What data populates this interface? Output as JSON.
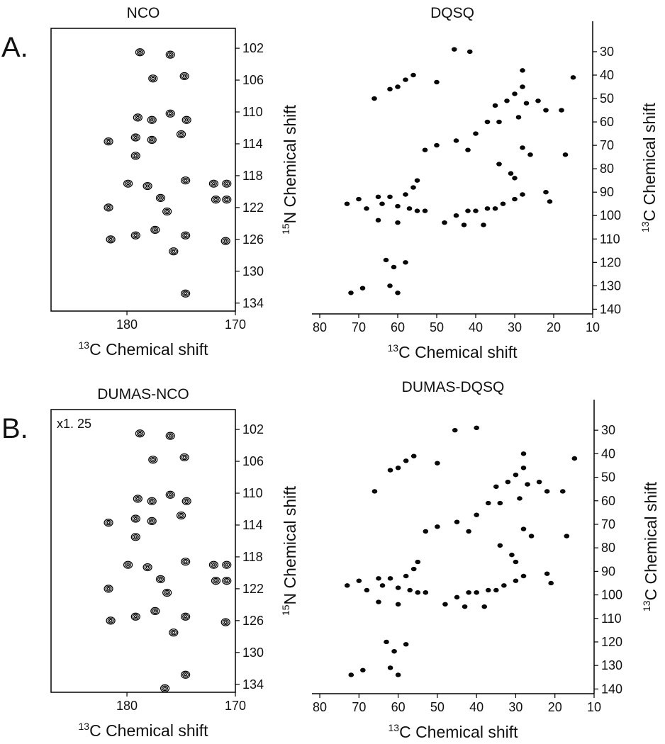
{
  "chart_data": [
    {
      "type": "contour",
      "title": "NCO",
      "panel_label": "A.",
      "xlabel_isotope": "13",
      "xlabel": "C Chemical shift",
      "ylabel_isotope": "15",
      "ylabel": "N Chemical shift",
      "xlim": [
        170,
        187
      ],
      "xaxis_inverted": true,
      "xticks": [
        180,
        170
      ],
      "ylim": [
        99.5,
        135
      ],
      "yaxis_inverted": true,
      "yticks": [
        102,
        106,
        110,
        114,
        118,
        122,
        126,
        130,
        134
      ],
      "color": "#000000",
      "frame": "box",
      "x": [
        178.8,
        176.0,
        177.6,
        174.7,
        179.0,
        177.7,
        176.0,
        174.5,
        181.7,
        179.2,
        177.7,
        175.0,
        179.2,
        178.1,
        174.6,
        179.9,
        176.9,
        176.3,
        172.0,
        170.8,
        171.8,
        170.8,
        181.7,
        181.5,
        179.2,
        177.4,
        175.7,
        174.6,
        170.9,
        174.6
      ],
      "values": [
        102.5,
        102.8,
        105.8,
        105.5,
        110.7,
        111.0,
        110.2,
        111.0,
        113.7,
        113.2,
        113.5,
        112.8,
        115.5,
        119.3,
        118.6,
        119.0,
        120.8,
        122.5,
        119.0,
        119.0,
        121.0,
        121.0,
        122.0,
        126.0,
        125.5,
        124.8,
        127.5,
        125.5,
        126.2,
        132.8
      ]
    },
    {
      "type": "contour",
      "title": "DQSQ",
      "xlabel_isotope": "13",
      "xlabel": "C Chemical shift",
      "ylabel_isotope": "13",
      "ylabel": "C Chemical shift",
      "xlim": [
        10,
        82
      ],
      "xaxis_inverted": true,
      "xticks": [
        80,
        70,
        60,
        50,
        40,
        30,
        20,
        10
      ],
      "ylim": [
        17,
        142
      ],
      "yaxis_inverted": true,
      "yticks": [
        30,
        40,
        50,
        60,
        70,
        80,
        90,
        100,
        110,
        120,
        130,
        140
      ],
      "color": "#000000",
      "frame": "open",
      "x": [
        45.5,
        41.5,
        56,
        58,
        60,
        62,
        66,
        28,
        30,
        32,
        35,
        27,
        24,
        22,
        15,
        18,
        29,
        37,
        34,
        40,
        45,
        50,
        53,
        42,
        28,
        26,
        17,
        34,
        31,
        30,
        55,
        56,
        58,
        62,
        65,
        70,
        73,
        68,
        64,
        60,
        57,
        55,
        53,
        65,
        45,
        42,
        40,
        37,
        35,
        33,
        30,
        28,
        22,
        21,
        60,
        48,
        43,
        38,
        63,
        61,
        58,
        72,
        69,
        62,
        60,
        50,
        28
      ],
      "values": [
        29,
        30,
        40,
        42,
        45,
        46,
        50,
        38,
        48,
        51,
        53,
        52,
        51,
        55,
        41,
        55,
        58,
        60,
        60,
        65,
        68,
        70,
        72,
        72,
        71,
        74,
        74,
        78,
        82,
        84,
        85,
        88,
        91,
        92,
        92,
        93,
        95,
        97,
        95,
        96,
        97,
        98,
        98,
        102,
        100,
        98,
        98,
        97,
        97,
        95,
        93,
        91,
        90,
        94,
        103,
        103,
        104,
        104,
        119,
        122,
        120,
        133,
        131,
        130,
        133,
        43,
        45
      ]
    },
    {
      "type": "contour",
      "title": "DUMAS-NCO",
      "panel_label": "B.",
      "annotation": "x1. 25",
      "xlabel_isotope": "13",
      "xlabel": "C Chemical shift",
      "ylabel_isotope": "15",
      "ylabel": "N Chemical shift",
      "xlim": [
        170,
        187
      ],
      "xaxis_inverted": true,
      "xticks": [
        180,
        170
      ],
      "ylim": [
        99.5,
        135
      ],
      "yaxis_inverted": true,
      "yticks": [
        102,
        106,
        110,
        114,
        118,
        122,
        126,
        130,
        134
      ],
      "color": "#000000",
      "frame": "box",
      "x": [
        178.8,
        176.0,
        177.6,
        174.7,
        179.0,
        177.7,
        176.0,
        174.5,
        181.7,
        179.2,
        177.7,
        175.0,
        179.2,
        178.1,
        174.6,
        179.9,
        176.9,
        176.3,
        172.0,
        170.8,
        171.8,
        170.8,
        181.7,
        181.5,
        179.2,
        177.4,
        175.7,
        174.6,
        170.9,
        174.6,
        176.5
      ],
      "values": [
        102.5,
        102.8,
        105.8,
        105.5,
        110.7,
        111.0,
        110.2,
        111.0,
        113.7,
        113.2,
        113.5,
        112.8,
        115.5,
        119.3,
        118.6,
        119.0,
        120.8,
        122.5,
        119.0,
        119.0,
        121.0,
        121.0,
        122.0,
        126.0,
        125.5,
        124.8,
        127.5,
        125.5,
        126.2,
        132.8,
        134.5
      ]
    },
    {
      "type": "contour",
      "title": "DUMAS-DQSQ",
      "xlabel_isotope": "13",
      "xlabel": "C Chemical shift",
      "ylabel_isotope": "13",
      "ylabel": "C Chemical shift",
      "xlim": [
        10,
        82
      ],
      "xaxis_inverted": true,
      "xticks": [
        80,
        70,
        60,
        50,
        40,
        30,
        20,
        10
      ],
      "ylim": [
        17,
        142
      ],
      "yaxis_inverted": true,
      "yticks": [
        30,
        40,
        50,
        60,
        70,
        80,
        90,
        100,
        110,
        120,
        130,
        140
      ],
      "color": "#000000",
      "frame": "open",
      "x": [
        45.5,
        40,
        56,
        58,
        60,
        62,
        66,
        28,
        30,
        32,
        35,
        27,
        24,
        22,
        15,
        18,
        29,
        37,
        34,
        40,
        45,
        50,
        53,
        42,
        28,
        26,
        17,
        34,
        31,
        30,
        55,
        56,
        58,
        62,
        65,
        70,
        73,
        68,
        64,
        60,
        57,
        55,
        53,
        65,
        45,
        42,
        40,
        37,
        35,
        33,
        30,
        28,
        22,
        21,
        60,
        48,
        43,
        38,
        63,
        61,
        58,
        72,
        69,
        62,
        60,
        50,
        28
      ],
      "values": [
        30,
        29,
        41,
        43,
        46,
        47,
        56,
        40,
        49,
        52,
        54,
        53,
        52,
        56,
        42,
        56,
        59,
        61,
        61,
        66,
        69,
        71,
        73,
        73,
        72,
        75,
        75,
        79,
        83,
        86,
        86,
        89,
        92,
        93,
        93,
        94,
        96,
        98,
        96,
        97,
        98,
        99,
        99,
        103,
        101,
        99,
        99,
        98,
        98,
        96,
        94,
        92,
        91,
        95,
        104,
        104,
        105,
        105,
        120,
        124,
        121,
        134,
        132,
        131,
        134,
        44,
        46
      ]
    }
  ]
}
